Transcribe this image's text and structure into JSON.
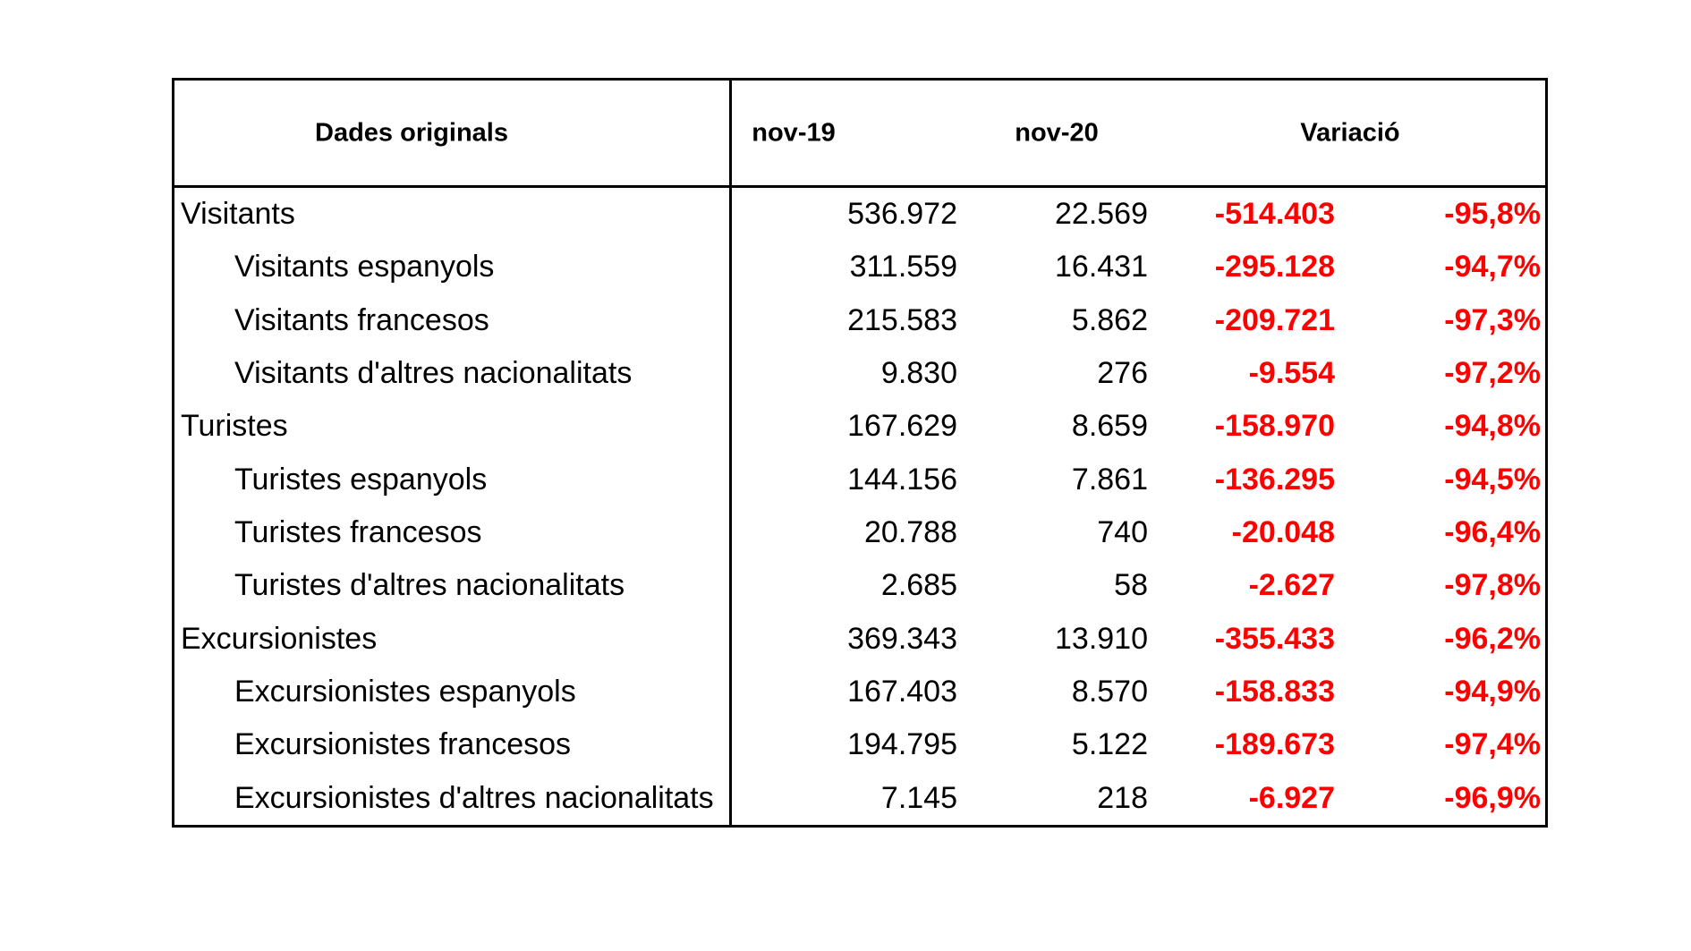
{
  "table": {
    "header": {
      "col1": "Dades originals",
      "col2": "nov-19",
      "col3": "nov-20",
      "col4": "Variació"
    },
    "rows": [
      {
        "label": "Visitants",
        "indent": false,
        "nov19": "536.972",
        "nov20": "22.569",
        "variacio": "-514.403",
        "pct": "-95,8%"
      },
      {
        "label": "Visitants espanyols",
        "indent": true,
        "nov19": "311.559",
        "nov20": "16.431",
        "variacio": "-295.128",
        "pct": "-94,7%"
      },
      {
        "label": "Visitants francesos",
        "indent": true,
        "nov19": "215.583",
        "nov20": "5.862",
        "variacio": "-209.721",
        "pct": "-97,3%"
      },
      {
        "label": "Visitants d'altres nacionalitats",
        "indent": true,
        "nov19": "9.830",
        "nov20": "276",
        "variacio": "-9.554",
        "pct": "-97,2%"
      },
      {
        "label": "Turistes",
        "indent": false,
        "nov19": "167.629",
        "nov20": "8.659",
        "variacio": "-158.970",
        "pct": "-94,8%"
      },
      {
        "label": "Turistes espanyols",
        "indent": true,
        "nov19": "144.156",
        "nov20": "7.861",
        "variacio": "-136.295",
        "pct": "-94,5%"
      },
      {
        "label": "Turistes francesos",
        "indent": true,
        "nov19": "20.788",
        "nov20": "740",
        "variacio": "-20.048",
        "pct": "-96,4%"
      },
      {
        "label": "Turistes d'altres nacionalitats",
        "indent": true,
        "nov19": "2.685",
        "nov20": "58",
        "variacio": "-2.627",
        "pct": "-97,8%"
      },
      {
        "label": "Excursionistes",
        "indent": false,
        "nov19": "369.343",
        "nov20": "13.910",
        "variacio": "-355.433",
        "pct": "-96,2%"
      },
      {
        "label": "Excursionistes espanyols",
        "indent": true,
        "nov19": "167.403",
        "nov20": "8.570",
        "variacio": "-158.833",
        "pct": "-94,9%"
      },
      {
        "label": "Excursionistes francesos",
        "indent": true,
        "nov19": "194.795",
        "nov20": "5.122",
        "variacio": "-189.673",
        "pct": "-97,4%"
      },
      {
        "label": "Excursionistes d'altres nacionalitats",
        "indent": true,
        "nov19": "7.145",
        "nov20": "218",
        "variacio": "-6.927",
        "pct": "-96,9%"
      }
    ],
    "colors": {
      "negative_value": "#fe0000",
      "text": "#000000",
      "border": "#000000",
      "background": "#ffffff"
    }
  },
  "chart_data": {
    "type": "table",
    "title": "Dades originals",
    "columns": [
      "Dades originals",
      "nov-19",
      "nov-20",
      "Variació"
    ],
    "variacio_subcolumns": [
      "absolute",
      "percent"
    ],
    "rows": [
      [
        "Visitants",
        "536.972",
        "22.569",
        "-514.403",
        "-95,8%"
      ],
      [
        "Visitants espanyols",
        "311.559",
        "16.431",
        "-295.128",
        "-94,7%"
      ],
      [
        "Visitants francesos",
        "215.583",
        "5.862",
        "-209.721",
        "-97,3%"
      ],
      [
        "Visitants d'altres nacionalitats",
        "9.830",
        "276",
        "-9.554",
        "-97,2%"
      ],
      [
        "Turistes",
        "167.629",
        "8.659",
        "-158.970",
        "-94,8%"
      ],
      [
        "Turistes espanyols",
        "144.156",
        "7.861",
        "-136.295",
        "-94,5%"
      ],
      [
        "Turistes francesos",
        "20.788",
        "740",
        "-20.048",
        "-96,4%"
      ],
      [
        "Turistes d'altres nacionalitats",
        "2.685",
        "58",
        "-2.627",
        "-97,8%"
      ],
      [
        "Excursionistes",
        "369.343",
        "13.910",
        "-355.433",
        "-96,2%"
      ],
      [
        "Excursionistes espanyols",
        "167.403",
        "8.570",
        "-158.833",
        "-94,9%"
      ],
      [
        "Excursionistes francesos",
        "194.795",
        "5.122",
        "-189.673",
        "-97,4%"
      ],
      [
        "Excursionistes d'altres nacionalitats",
        "7.145",
        "218",
        "-6.927",
        "-96,9%"
      ]
    ],
    "notes": "Negative variation values rendered bold red; values use Catalan thousand separators (.) and decimal comma"
  }
}
